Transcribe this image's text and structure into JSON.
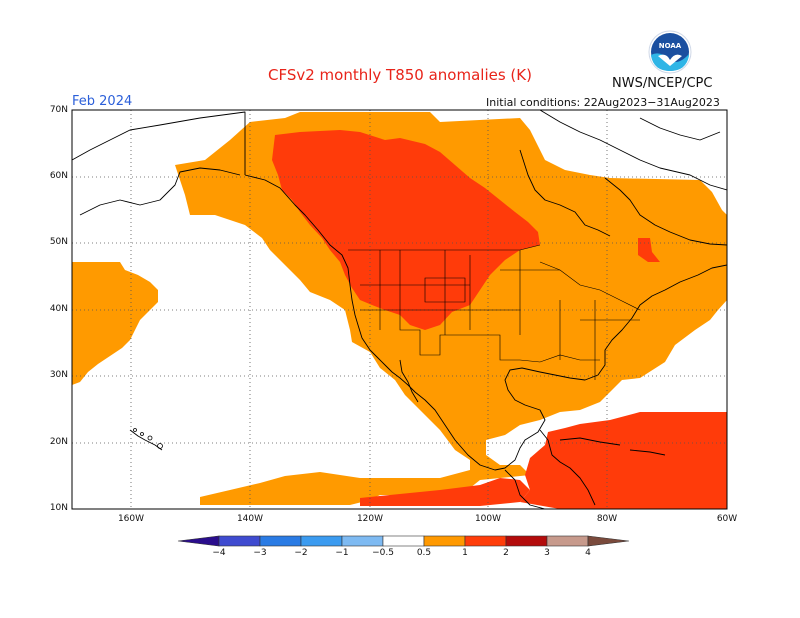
{
  "header": {
    "title": "CFSv2 monthly T850 anomalies (K)",
    "agency": "NWS/NCEP/CPC",
    "logo_text": "NOAA",
    "month": "Feb 2024",
    "initial_conditions": "Initial conditions: 22Aug2023−31Aug2023"
  },
  "map": {
    "lat_labels": [
      "70N",
      "60N",
      "50N",
      "40N",
      "30N",
      "20N",
      "10N"
    ],
    "lon_labels": [
      "160W",
      "140W",
      "120W",
      "100W",
      "80W",
      "60W"
    ],
    "lat_range": [
      10,
      70
    ],
    "lon_range": [
      -170,
      -60
    ],
    "grid": "dotted"
  },
  "colorbar": {
    "tick_labels": [
      "−4",
      "−3",
      "−2",
      "−1",
      "−0.5",
      "0.5",
      "1",
      "2",
      "3",
      "4"
    ],
    "colors": [
      "#2a0d8c",
      "#3f4bd0",
      "#2a7be4",
      "#3b9bf0",
      "#7ebaf2",
      "#ffffff",
      "#ff9900",
      "#ff3d0a",
      "#b30b0b",
      "#c79a8c",
      "#7a4a3c"
    ]
  },
  "anomaly_colors": {
    "light": "#ff9a00",
    "strong": "#ff3b0a"
  }
}
